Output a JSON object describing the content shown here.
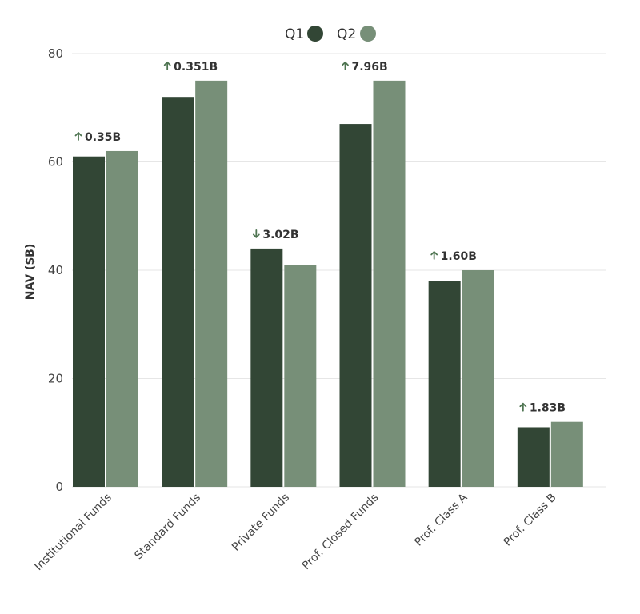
{
  "chart_data": {
    "type": "bar",
    "categories": [
      "Institutional Funds",
      "Standard Funds",
      "Private Funds",
      "Prof. Closed Funds",
      "Prof. Class A",
      "Prof. Class B"
    ],
    "series": [
      {
        "name": "Q1",
        "color": "#324635",
        "values": [
          61,
          72,
          44,
          67,
          38,
          11
        ]
      },
      {
        "name": "Q2",
        "color": "#778f78",
        "values": [
          62,
          75,
          41,
          75,
          40,
          12
        ]
      }
    ],
    "annotations": [
      {
        "text": "0.35B",
        "direction": "up"
      },
      {
        "text": "0.351B",
        "direction": "up"
      },
      {
        "text": "3.02B",
        "direction": "down"
      },
      {
        "text": "7.96B",
        "direction": "up"
      },
      {
        "text": "1.60B",
        "direction": "up"
      },
      {
        "text": "1.83B",
        "direction": "up"
      }
    ],
    "title": "",
    "xlabel": "",
    "ylabel": "NAV ($B)",
    "ylim": [
      0,
      80
    ],
    "yticks": [
      0,
      20,
      40,
      60,
      80
    ],
    "grid": true,
    "legend_position": "top-center",
    "arrow_color": "#4f7552"
  }
}
